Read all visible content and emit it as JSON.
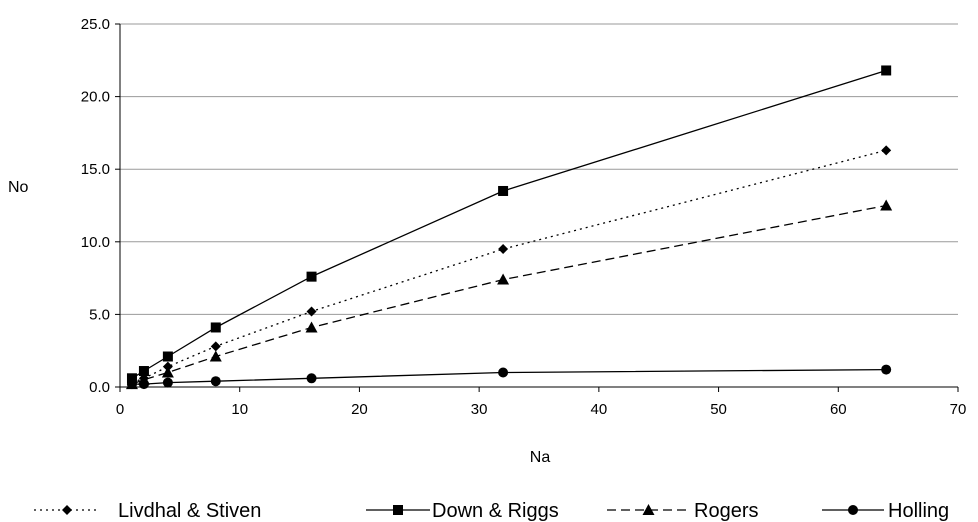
{
  "chart_data": {
    "type": "line",
    "xlabel": "Na",
    "ylabel": "No",
    "xlim": [
      0,
      70
    ],
    "ylim": [
      0,
      25
    ],
    "x_ticks": [
      "0",
      "10",
      "20",
      "30",
      "40",
      "50",
      "60",
      "70"
    ],
    "y_ticks": [
      "0.0",
      "5.0",
      "10.0",
      "15.0",
      "20.0",
      "25.0"
    ],
    "grid": "horizontal",
    "legend_position": "bottom",
    "series": [
      {
        "name": "Livdhal & Stiven",
        "line_style": "dotted",
        "marker": "diamond",
        "color": "#000000",
        "points": [
          [
            1,
            0.3
          ],
          [
            2,
            0.6
          ],
          [
            4,
            1.4
          ],
          [
            8,
            2.8
          ],
          [
            16,
            5.2
          ],
          [
            32,
            9.5
          ],
          [
            64,
            16.3
          ]
        ]
      },
      {
        "name": "Down & Riggs",
        "line_style": "solid",
        "marker": "square",
        "color": "#000000",
        "points": [
          [
            1,
            0.6
          ],
          [
            2,
            1.1
          ],
          [
            4,
            2.1
          ],
          [
            8,
            4.1
          ],
          [
            16,
            7.6
          ],
          [
            32,
            13.5
          ],
          [
            64,
            21.8
          ]
        ]
      },
      {
        "name": "Rogers",
        "line_style": "dashed",
        "marker": "triangle",
        "color": "#000000",
        "points": [
          [
            1,
            0.2
          ],
          [
            2,
            0.5
          ],
          [
            4,
            1.0
          ],
          [
            8,
            2.1
          ],
          [
            16,
            4.1
          ],
          [
            32,
            7.4
          ],
          [
            64,
            12.5
          ]
        ]
      },
      {
        "name": "Holling",
        "line_style": "solid",
        "marker": "circle",
        "color": "#000000",
        "points": [
          [
            1,
            0.2
          ],
          [
            2,
            0.2
          ],
          [
            4,
            0.3
          ],
          [
            8,
            0.4
          ],
          [
            16,
            0.6
          ],
          [
            32,
            1.0
          ],
          [
            64,
            1.2
          ]
        ]
      }
    ]
  }
}
